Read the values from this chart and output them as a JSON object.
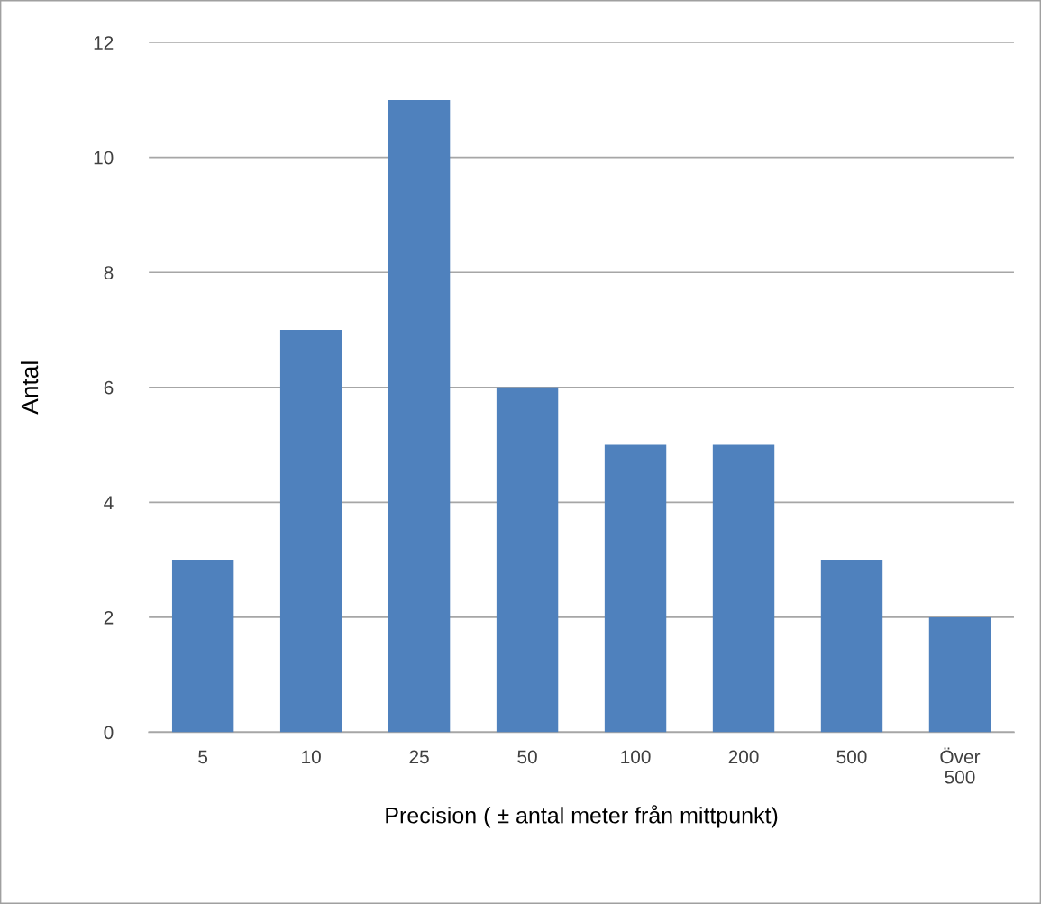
{
  "chart_data": {
    "type": "bar",
    "xlabel": "Precision ( ± antal meter från mittpunkt)",
    "ylabel": "Antal",
    "categories": [
      "5",
      "10",
      "25",
      "50",
      "100",
      "200",
      "500",
      "Över\n500"
    ],
    "values": [
      3,
      7,
      11,
      6,
      5,
      5,
      3,
      2
    ],
    "color": "#4f81bd",
    "ylim": [
      0,
      12
    ],
    "yticks": [
      0,
      2,
      4,
      6,
      8,
      10,
      12
    ],
    "grid": "y",
    "legend": false
  }
}
